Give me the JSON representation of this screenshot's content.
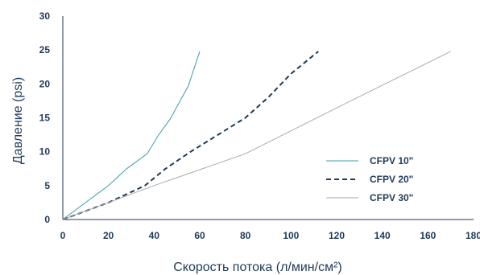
{
  "chart_data": {
    "type": "line",
    "xlabel": "Скорость потока (л/мин/см²)",
    "ylabel": "Давление (psi)",
    "xlim": [
      0,
      180
    ],
    "ylim": [
      0,
      30
    ],
    "x_ticks": [
      0,
      20,
      40,
      60,
      80,
      100,
      120,
      140,
      160,
      180
    ],
    "y_ticks": [
      0,
      5,
      10,
      15,
      20,
      25,
      30
    ],
    "grid": false,
    "legend_position": "right",
    "series": [
      {
        "name": "CFPV 10\"",
        "color": "#3a9ca6",
        "style": "solid",
        "x": [
          0,
          10,
          20,
          28,
          37,
          42,
          47,
          55,
          60
        ],
        "y": [
          0,
          2.5,
          5,
          7.5,
          9.7,
          12.5,
          14.8,
          19.7,
          24.8
        ]
      },
      {
        "name": "CFPV 20\"",
        "color": "#1f3b57",
        "style": "dashed",
        "x": [
          0,
          20,
          36,
          45,
          56,
          68,
          80,
          90,
          100,
          112
        ],
        "y": [
          0,
          2.5,
          5,
          7.5,
          10,
          12.5,
          15,
          18,
          21.5,
          24.8
        ]
      },
      {
        "name": "CFPV 30\"",
        "color": "#aaaaaa",
        "style": "solid",
        "x": [
          0,
          40,
          80,
          125,
          170
        ],
        "y": [
          0,
          5,
          9.7,
          17.3,
          24.8
        ]
      }
    ]
  }
}
